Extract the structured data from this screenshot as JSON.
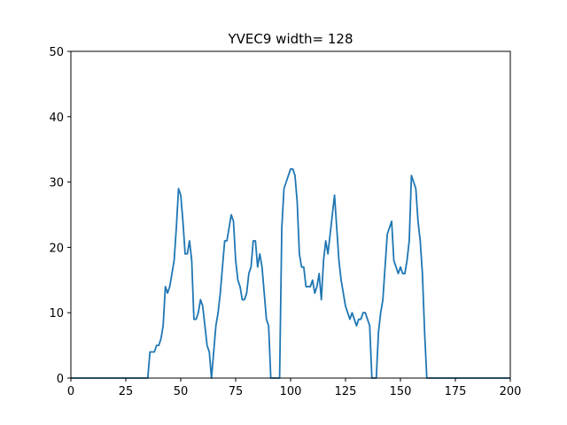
{
  "chart_data": {
    "type": "line",
    "title": "YVEC9 width= 128",
    "xlabel": "",
    "ylabel": "",
    "xlim": [
      0,
      200
    ],
    "ylim": [
      0,
      50
    ],
    "xticks": [
      0,
      25,
      50,
      75,
      100,
      125,
      150,
      175,
      200
    ],
    "yticks": [
      0,
      10,
      20,
      30,
      40,
      50
    ],
    "grid": false,
    "line_color": "#1f77b4",
    "series": [
      {
        "x": [
          0,
          35,
          36,
          38,
          39,
          40,
          41,
          42,
          43,
          44,
          45,
          46,
          47,
          48,
          49,
          50,
          51,
          52,
          53,
          54,
          55,
          56,
          57,
          58,
          59,
          60,
          61,
          62,
          63,
          64,
          65,
          66,
          67,
          68,
          69,
          70,
          71,
          72,
          73,
          74,
          75,
          76,
          77,
          78,
          79,
          80,
          81,
          82,
          83,
          84,
          85,
          86,
          87,
          88,
          89,
          90,
          91,
          92,
          93,
          94,
          95,
          96,
          97,
          98,
          99,
          100,
          101,
          102,
          103,
          104,
          105,
          106,
          107,
          108,
          109,
          110,
          111,
          112,
          113,
          114,
          115,
          116,
          117,
          118,
          119,
          120,
          121,
          122,
          123,
          124,
          125,
          126,
          127,
          128,
          129,
          130,
          131,
          132,
          133,
          134,
          135,
          136,
          137,
          138,
          139,
          140,
          141,
          142,
          143,
          144,
          145,
          146,
          147,
          148,
          149,
          150,
          151,
          152,
          153,
          154,
          155,
          156,
          157,
          158,
          159,
          160,
          161,
          162,
          163,
          164,
          200
        ],
        "y": [
          0,
          0,
          4,
          4,
          5,
          5,
          6,
          8,
          14,
          13,
          14,
          16,
          18,
          23,
          29,
          28,
          24,
          19,
          19,
          21,
          18,
          9,
          9,
          10,
          12,
          11,
          8,
          5,
          4,
          0,
          4,
          8,
          10,
          13,
          17,
          21,
          21,
          23,
          25,
          24,
          18,
          15,
          14,
          12,
          12,
          13,
          16,
          17,
          21,
          21,
          17,
          19,
          17,
          13,
          9,
          8,
          0,
          0,
          0,
          0,
          0,
          23,
          29,
          30,
          31,
          32,
          32,
          31,
          27,
          19,
          17,
          17,
          14,
          14,
          14,
          15,
          13,
          14,
          16,
          12,
          18,
          21,
          19,
          22,
          25,
          28,
          23,
          18,
          15,
          13,
          11,
          10,
          9,
          10,
          9,
          8,
          9,
          9,
          10,
          10,
          9,
          8,
          0,
          0,
          0,
          7,
          10,
          12,
          17,
          22,
          23,
          24,
          18,
          17,
          16,
          17,
          16,
          16,
          18,
          21,
          31,
          30,
          29,
          24,
          21,
          16,
          7,
          0,
          0,
          0,
          0
        ]
      }
    ]
  }
}
